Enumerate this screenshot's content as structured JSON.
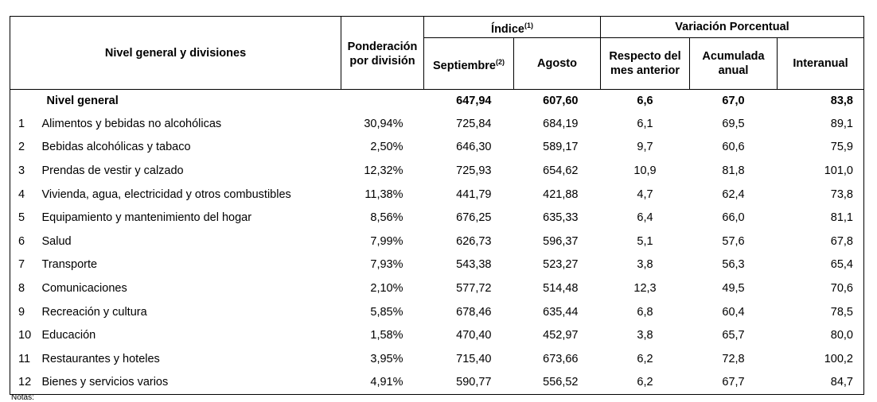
{
  "header": {
    "division": "Nivel general y divisiones",
    "weight": "Ponderación por división",
    "index": {
      "label": "Índice",
      "note": "(1)",
      "september": "Septiembre",
      "september_note": "(2)",
      "august": "Agosto"
    },
    "variation": {
      "label": "Variación Porcentual",
      "monthly": "Respecto del mes anterior",
      "cumulative": "Acumulada anual",
      "annual": "Interanual"
    }
  },
  "total": {
    "label": "Nivel general",
    "september": "647,94",
    "august": "607,60",
    "monthly": "6,6",
    "cumulative": "67,0",
    "annual": "83,8"
  },
  "rows": [
    [
      "1",
      "Alimentos y bebidas no alcohólicas",
      "30,94%",
      "725,84",
      "684,19",
      "6,1",
      "69,5",
      "89,1"
    ],
    [
      "2",
      "Bebidas alcohólicas y tabaco",
      "2,50%",
      "646,30",
      "589,17",
      "9,7",
      "60,6",
      "75,9"
    ],
    [
      "3",
      "Prendas de vestir y calzado",
      "12,32%",
      "725,93",
      "654,62",
      "10,9",
      "81,8",
      "101,0"
    ],
    [
      "4",
      "Vivienda, agua, electricidad y otros combustibles",
      "11,38%",
      "441,79",
      "421,88",
      "4,7",
      "62,4",
      "73,8"
    ],
    [
      "5",
      "Equipamiento y mantenimiento del hogar",
      "8,56%",
      "676,25",
      "635,33",
      "6,4",
      "66,0",
      "81,1"
    ],
    [
      "6",
      "Salud",
      "7,99%",
      "626,73",
      "596,37",
      "5,1",
      "57,6",
      "67,8"
    ],
    [
      "7",
      "Transporte",
      "7,93%",
      "543,38",
      "523,27",
      "3,8",
      "56,3",
      "65,4"
    ],
    [
      "8",
      "Comunicaciones",
      "2,10%",
      "577,72",
      "514,48",
      "12,3",
      "49,5",
      "70,6"
    ],
    [
      "9",
      "Recreación y cultura",
      "5,85%",
      "678,46",
      "635,44",
      "6,8",
      "60,4",
      "78,5"
    ],
    [
      "10",
      "Educación",
      "1,58%",
      "470,40",
      "452,97",
      "3,8",
      "65,7",
      "80,0"
    ],
    [
      "11",
      "Restaurantes y hoteles",
      "3,95%",
      "715,40",
      "673,66",
      "6,2",
      "72,8",
      "100,2"
    ],
    [
      "12",
      "Bienes y servicios varios",
      "4,91%",
      "590,77",
      "556,52",
      "6,2",
      "67,7",
      "84,7"
    ]
  ],
  "notes": "Notas:"
}
